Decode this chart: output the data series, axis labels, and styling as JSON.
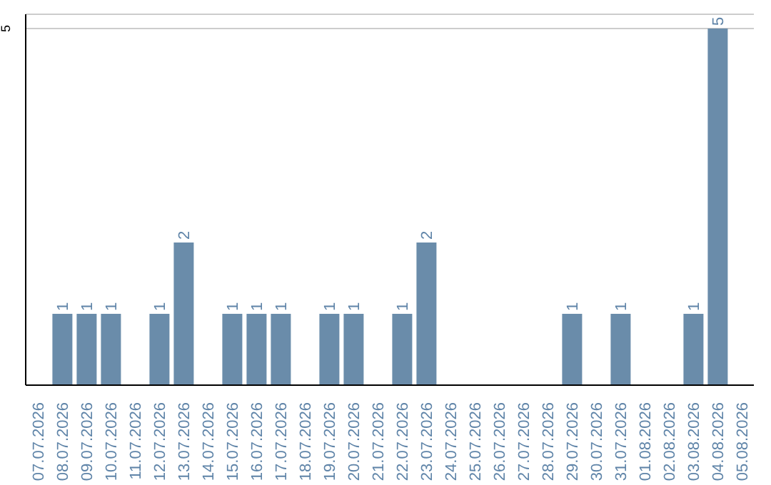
{
  "chart_data": {
    "type": "bar",
    "categories": [
      "07.07.2026",
      "08.07.2026",
      "09.07.2026",
      "10.07.2026",
      "11.07.2026",
      "12.07.2026",
      "13.07.2026",
      "14.07.2026",
      "15.07.2026",
      "16.07.2026",
      "17.07.2026",
      "18.07.2026",
      "19.07.2026",
      "20.07.2026",
      "21.07.2026",
      "22.07.2026",
      "23.07.2026",
      "24.07.2026",
      "25.07.2026",
      "26.07.2026",
      "27.07.2026",
      "28.07.2026",
      "29.07.2026",
      "30.07.2026",
      "31.07.2026",
      "01.08.2026",
      "02.08.2026",
      "03.08.2026",
      "04.08.2026",
      "05.08.2026"
    ],
    "values": [
      0,
      1,
      1,
      1,
      0,
      1,
      2,
      0,
      1,
      1,
      1,
      0,
      1,
      1,
      0,
      1,
      2,
      0,
      0,
      0,
      0,
      0,
      1,
      0,
      1,
      0,
      0,
      1,
      5,
      0
    ],
    "value_labels": [
      null,
      "1",
      "1",
      "1",
      null,
      "1",
      "2",
      null,
      "1",
      "1",
      "1",
      null,
      "1",
      "1",
      null,
      "1",
      "2",
      null,
      null,
      null,
      null,
      null,
      "1",
      null,
      "1",
      null,
      null,
      "1",
      "5",
      null
    ],
    "color": "#6a8caa",
    "ylim": [
      0,
      5.2
    ],
    "yticks": [
      5
    ],
    "grid": "y",
    "legend": false
  }
}
